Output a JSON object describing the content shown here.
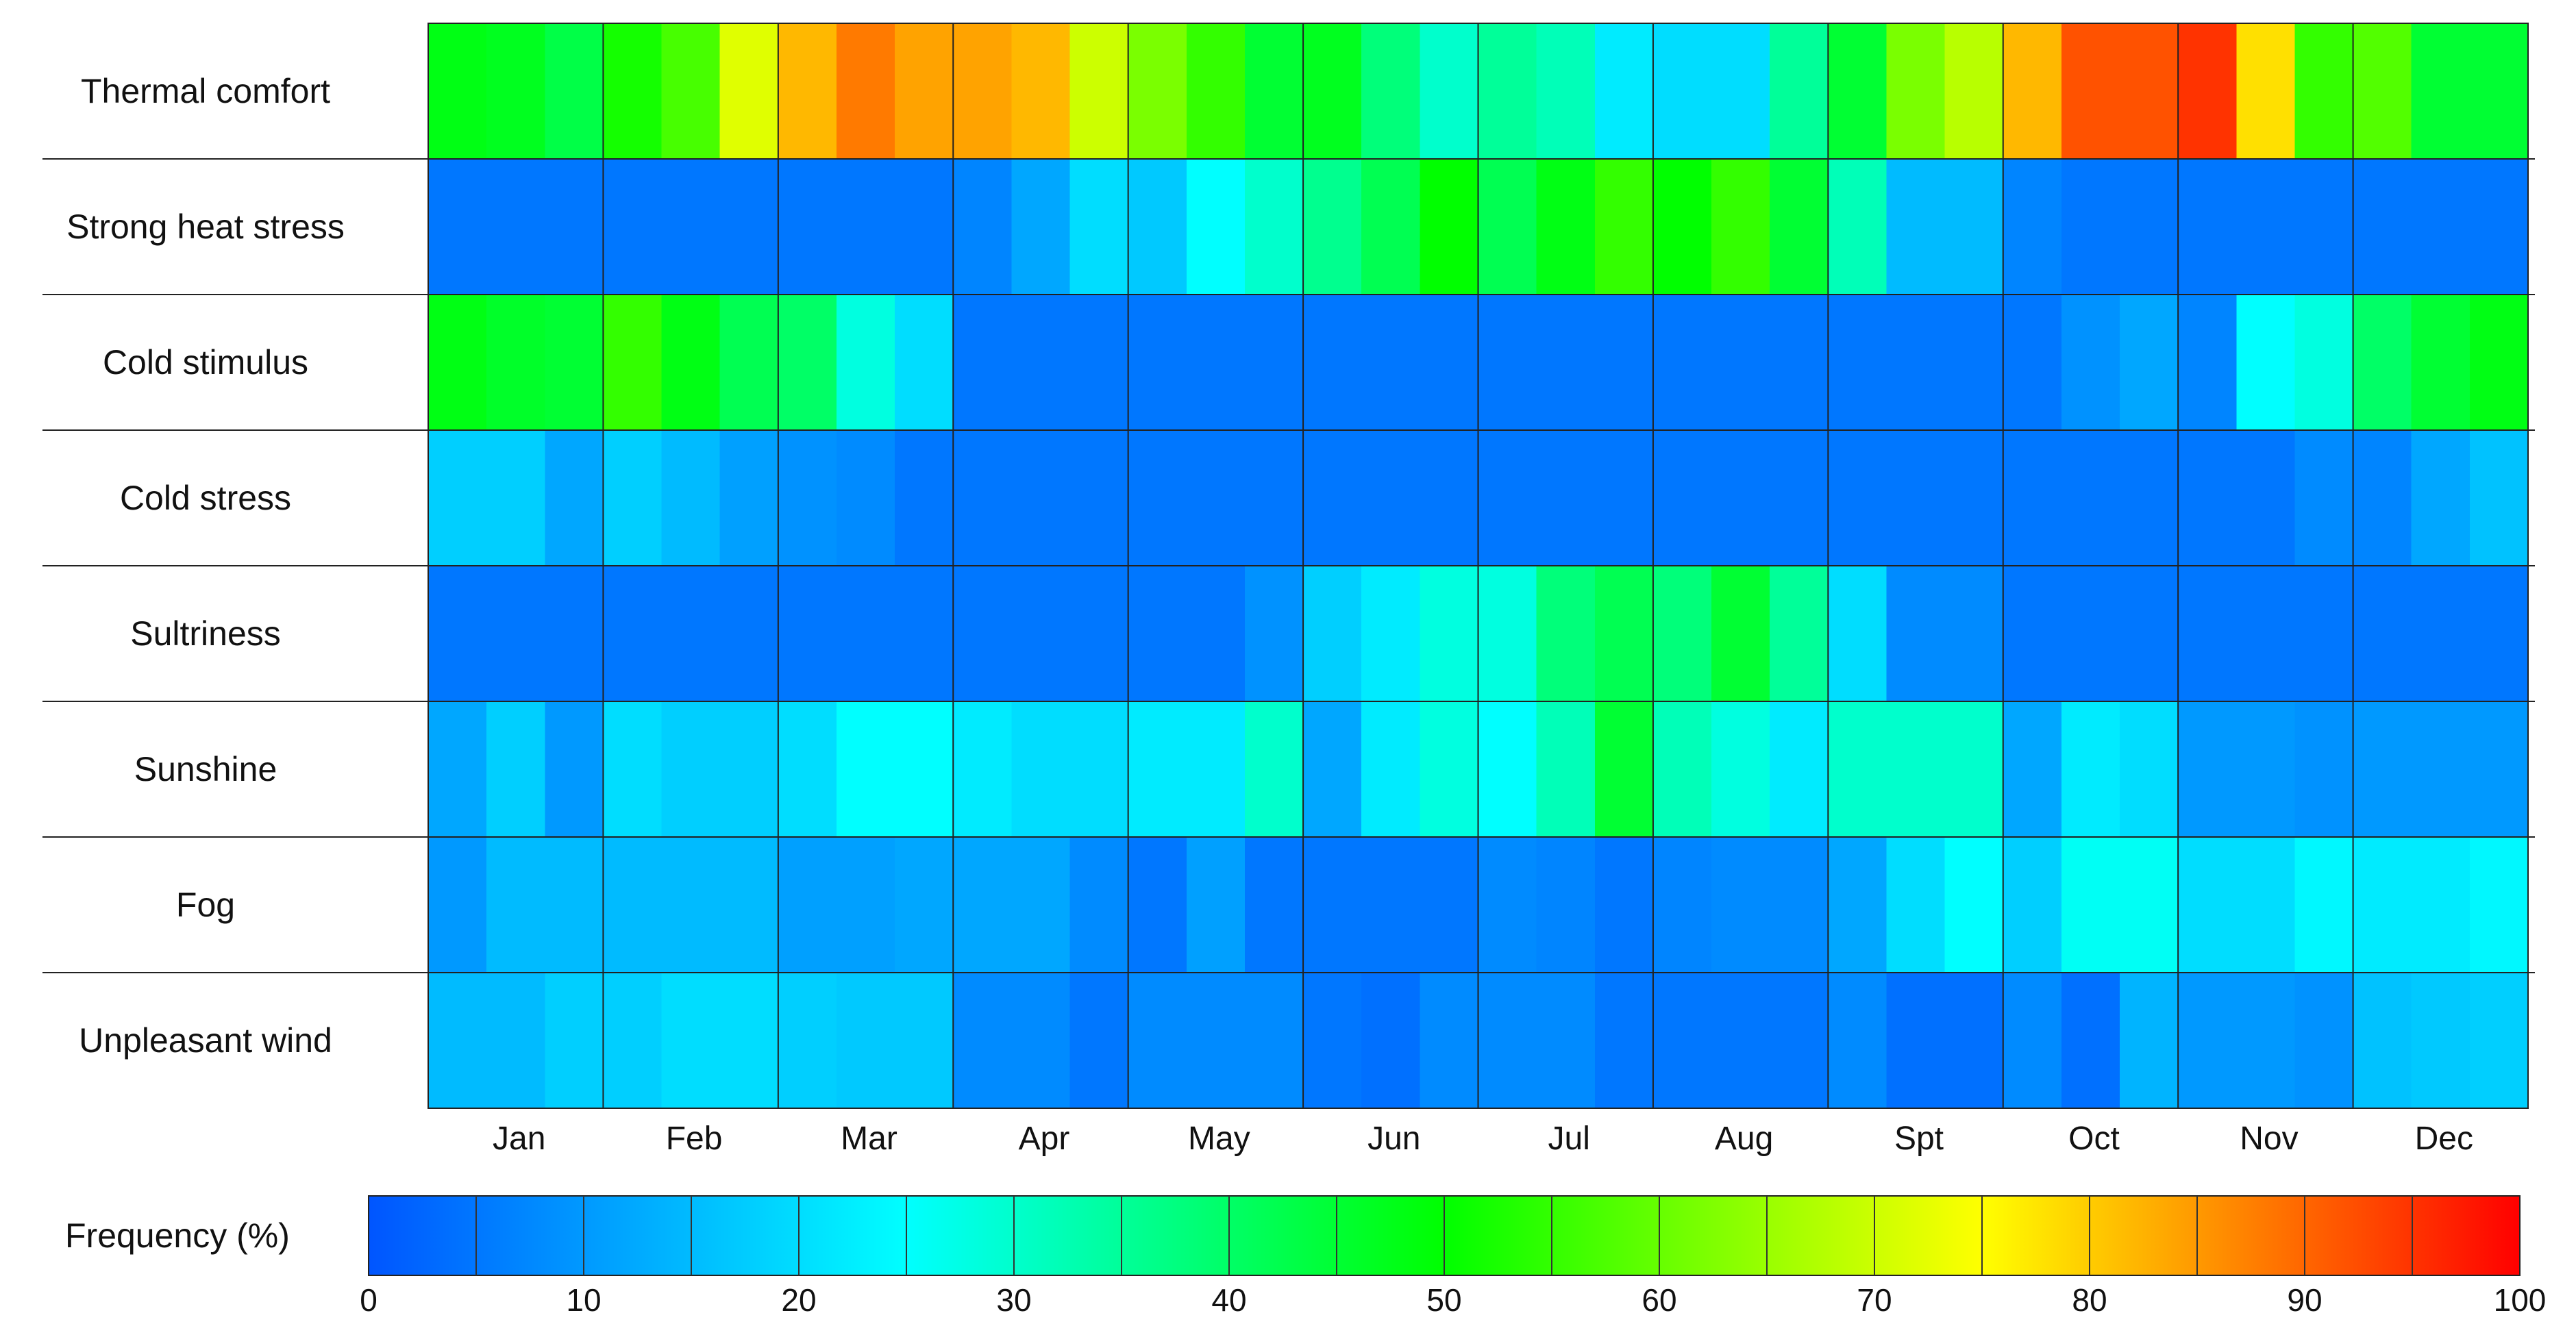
{
  "chart_data": {
    "type": "heatmap",
    "title": "",
    "rows": [
      "Thermal comfort",
      "Strong heat stress",
      "Cold stimulus",
      "Cold stress",
      "Sultriness",
      "Sunshine",
      "Fog",
      "Unpleasant wind"
    ],
    "months": [
      "Jan",
      "Feb",
      "Mar",
      "Apr",
      "May",
      "Jun",
      "Jul",
      "Aug",
      "Spt",
      "Oct",
      "Nov",
      "Dec"
    ],
    "subdivisions_per_month": 3,
    "values": [
      [
        48,
        47,
        43,
        52,
        57,
        72,
        82,
        88,
        84,
        84,
        82,
        70,
        62,
        55,
        45,
        47,
        38,
        30,
        35,
        32,
        22,
        20,
        20,
        35,
        45,
        62,
        68,
        82,
        92,
        92,
        95,
        78,
        55,
        58,
        45,
        45
      ],
      [
        5,
        5,
        5,
        5,
        5,
        5,
        5,
        5,
        5,
        7,
        12,
        20,
        17,
        25,
        30,
        36,
        42,
        50,
        42,
        48,
        55,
        50,
        55,
        45,
        32,
        15,
        15,
        7,
        5,
        5,
        5,
        5,
        5,
        5,
        5,
        5
      ],
      [
        48,
        46,
        45,
        55,
        48,
        42,
        40,
        28,
        20,
        5,
        5,
        5,
        5,
        5,
        5,
        5,
        5,
        5,
        5,
        5,
        5,
        5,
        5,
        5,
        5,
        5,
        5,
        5,
        9,
        12,
        7,
        25,
        28,
        40,
        45,
        48
      ],
      [
        18,
        18,
        12,
        18,
        15,
        11,
        9,
        8,
        5,
        5,
        5,
        5,
        5,
        5,
        5,
        5,
        5,
        5,
        5,
        5,
        5,
        5,
        5,
        5,
        5,
        5,
        5,
        5,
        5,
        5,
        5,
        5,
        8,
        7,
        12,
        16
      ],
      [
        5,
        5,
        5,
        5,
        5,
        5,
        5,
        5,
        5,
        5,
        5,
        5,
        5,
        5,
        9,
        18,
        22,
        28,
        28,
        38,
        42,
        38,
        45,
        35,
        20,
        8,
        8,
        5,
        5,
        5,
        5,
        5,
        5,
        5,
        5,
        5
      ],
      [
        12,
        18,
        10,
        20,
        18,
        18,
        20,
        25,
        25,
        22,
        20,
        20,
        22,
        22,
        30,
        12,
        22,
        28,
        25,
        32,
        45,
        32,
        28,
        22,
        30,
        30,
        30,
        12,
        22,
        20,
        10,
        10,
        9,
        10,
        10,
        10
      ],
      [
        10,
        15,
        15,
        15,
        15,
        15,
        11,
        11,
        12,
        12,
        12,
        8,
        5,
        11,
        5,
        5,
        5,
        5,
        8,
        7,
        5,
        7,
        8,
        8,
        12,
        20,
        25,
        18,
        26,
        26,
        20,
        20,
        24,
        22,
        22,
        24
      ],
      [
        15,
        15,
        18,
        18,
        20,
        20,
        18,
        17,
        17,
        8,
        8,
        5,
        8,
        8,
        8,
        5,
        4,
        8,
        8,
        8,
        5,
        5,
        5,
        5,
        8,
        4,
        4,
        8,
        4,
        14,
        10,
        10,
        9,
        16,
        17,
        18
      ]
    ],
    "colorbar": {
      "label": "Frequency (%)",
      "min": 0,
      "max": 100,
      "step": 5,
      "ticks": [
        0,
        10,
        20,
        30,
        40,
        50,
        60,
        70,
        80,
        90,
        100
      ],
      "colormap": [
        "#0055ff",
        "#00ffff",
        "#00ff00",
        "#ffff00",
        "#ff0000"
      ]
    },
    "grid": true
  }
}
